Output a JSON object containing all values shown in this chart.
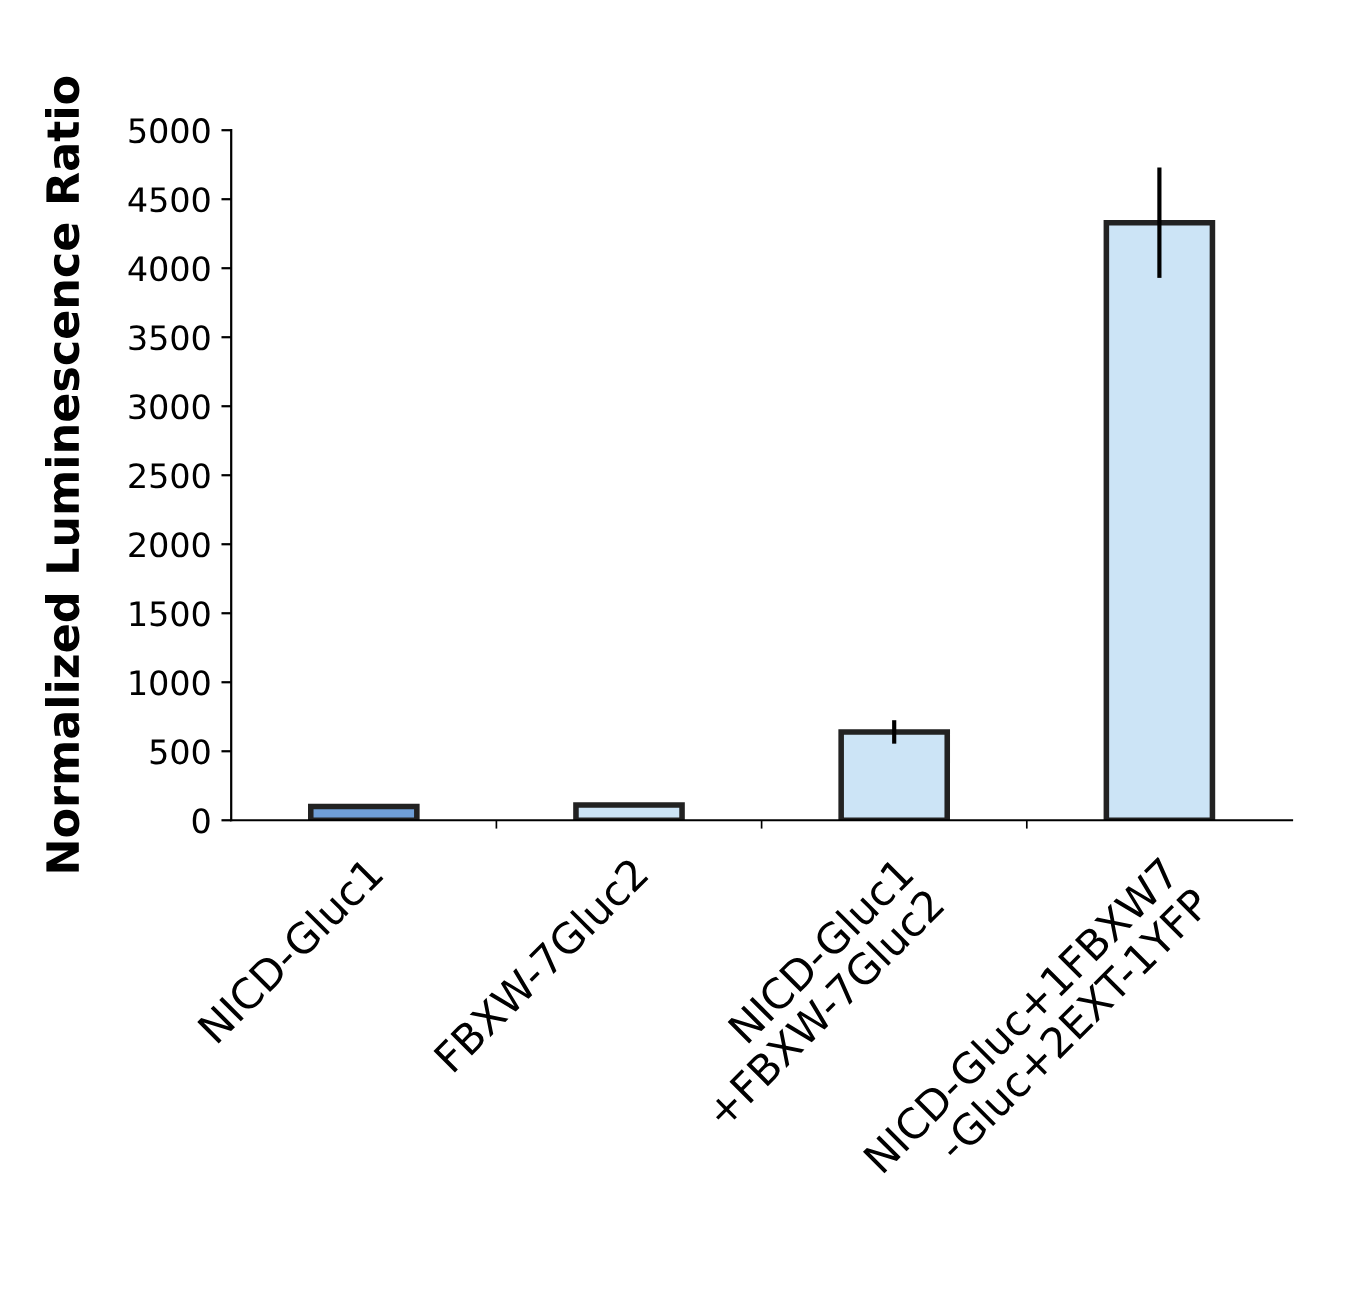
{
  "chart_data": {
    "type": "bar",
    "ylabel": "Normalized Luminescence Ratio",
    "categories": [
      "NICD-Gluc1",
      "FBXW-7Gluc2",
      "NICD-Gluc1\n+FBXW-7Gluc2",
      "NICD-Gluc+1FBXW7\n-Gluc+2EXT-1YFP"
    ],
    "values": [
      100,
      110,
      640,
      4330
    ],
    "errors": [
      null,
      null,
      85,
      400
    ],
    "colors": [
      "#6f9fd8",
      "#cce4f6",
      "#cce4f6",
      "#cce4f6"
    ],
    "ylim": [
      0,
      5000
    ],
    "yticks": [
      0,
      500,
      1000,
      1500,
      2000,
      2500,
      3000,
      3500,
      4000,
      4500,
      5000
    ],
    "grid": false
  }
}
